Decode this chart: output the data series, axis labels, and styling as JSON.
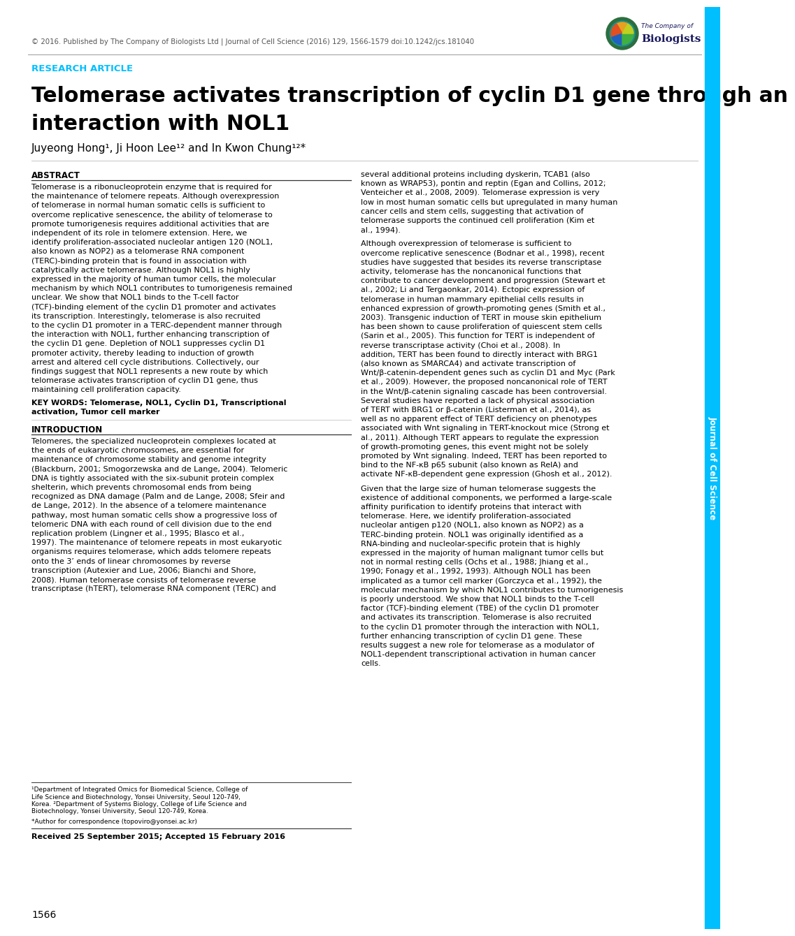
{
  "header_text": "© 2016. Published by The Company of Biologists Ltd | Journal of Cell Science (2016) 129, 1566-1579 doi:10.1242/jcs.181040",
  "research_article_label": "RESEARCH ARTICLE",
  "research_article_color": "#00BFFF",
  "title_line1": "Telomerase activates transcription of cyclin D1 gene through an",
  "title_line2": "interaction with NOL1",
  "authors": "Juyeong Hong¹, Ji Hoon Lee¹² and In Kwon Chung¹²*",
  "abstract_title": "ABSTRACT",
  "abstract_body": "Telomerase is a ribonucleoprotein enzyme that is required for the maintenance of telomere repeats. Although overexpression of telomerase in normal human somatic cells is sufficient to overcome replicative senescence, the ability of telomerase to promote tumorigenesis requires additional activities that are independent of its role in telomere extension. Here, we identify proliferation-associated nucleolar antigen 120 (NOL1, also known as NOP2) as a telomerase RNA component (TERC)-binding protein that is found in association with catalytically active telomerase. Although NOL1 is highly expressed in the majority of human tumor cells, the molecular mechanism by which NOL1 contributes to tumorigenesis remained unclear. We show that NOL1 binds to the T-cell factor (TCF)-binding element of the cyclin D1 promoter and activates its transcription. Interestingly, telomerase is also recruited to the cyclin D1 promoter in a TERC-dependent manner through the interaction with NOL1, further enhancing transcription of the cyclin D1 gene. Depletion of NOL1 suppresses cyclin D1 promoter activity, thereby leading to induction of growth arrest and altered cell cycle distributions. Collectively, our findings suggest that NOL1 represents a new route by which telomerase activates transcription of cyclin D1 gene, thus maintaining cell proliferation capacity.",
  "keywords_bold": "KEY WORDS: Telomerase, NOL1, Cyclin D1, Transcriptional",
  "keywords_bold2": "activation, Tumor cell marker",
  "intro_title": "INTRODUCTION",
  "intro_body": "Telomeres, the specialized nucleoprotein complexes located at the ends of eukaryotic chromosomes, are essential for maintenance of chromosome stability and genome integrity (Blackburn, 2001; Smogorzewska and de Lange, 2004). Telomeric DNA is tightly associated with the six-subunit protein complex shelterin, which prevents chromosomal ends from being recognized as DNA damage (Palm and de Lange, 2008; Sfeir and de Lange, 2012). In the absence of a telomere maintenance pathway, most human somatic cells show a progressive loss of telomeric DNA with each round of cell division due to the end replication problem (Lingner et al., 1995; Blasco et al., 1997). The maintenance of telomere repeats in most eukaryotic organisms requires telomerase, which adds telomere repeats onto the 3’ ends of linear chromosomes by reverse transcription (Autexier and Lue, 2006; Bianchi and Shore, 2008). Human telomerase consists of telomerase reverse transcriptase (hTERT), telomerase RNA component (TERC) and",
  "right_col_para1": "several additional proteins including dyskerin, TCAB1 (also known as WRAP53), pontin and reptin (Egan and Collins, 2012; Venteicher et al., 2008, 2009). Telomerase expression is very low in most human somatic cells but upregulated in many human cancer cells and stem cells, suggesting that activation of telomerase supports the continued cell proliferation (Kim et al., 1994).",
  "right_col_para2": "Although overexpression of telomerase is sufficient to overcome replicative senescence (Bodnar et al., 1998), recent studies have suggested that besides its reverse transcriptase activity, telomerase has the noncanonical functions that contribute to cancer development and progression (Stewart et al., 2002; Li and Tergaonkar, 2014). Ectopic expression of telomerase in human mammary epithelial cells results in enhanced expression of growth-promoting genes (Smith et al., 2003). Transgenic induction of TERT in mouse skin epithelium has been shown to cause proliferation of quiescent stem cells (Sarin et al., 2005). This function for TERT is independent of reverse transcriptase activity (Choi et al., 2008). In addition, TERT has been found to directly interact with BRG1 (also known as SMARCA4) and activate transcription of Wnt/β-catenin-dependent genes such as cyclin D1 and Myc (Park et al., 2009). However, the proposed noncanonical role of TERT in the Wnt/β-catenin signaling cascade has been controversial. Several studies have reported a lack of physical association of TERT with BRG1 or β-catenin (Listerman et al., 2014), as well as no apparent effect of TERT deficiency on phenotypes associated with Wnt signaling in TERT-knockout mice (Strong et al., 2011). Although TERT appears to regulate the expression of growth-promoting genes, this event might not be solely promoted by Wnt signaling. Indeed, TERT has been reported to bind to the NF-κB p65 subunit (also known as RelA) and activate NF-κB-dependent gene expression (Ghosh et al., 2012).",
  "right_col_para3": "Given that the large size of human telomerase suggests the existence of additional components, we performed a large-scale affinity purification to identify proteins that interact with telomerase. Here, we identify proliferation-associated nucleolar antigen p120 (NOL1, also known as NOP2) as a TERC-binding protein. NOL1 was originally identified as a RNA-binding and nucleolar-specific protein that is highly expressed in the majority of human malignant tumor cells but not in normal resting cells (Ochs et al., 1988; Jhiang et al., 1990; Fonagy et al., 1992, 1993). Although NOL1 has been implicated as a tumor cell marker (Gorczyca et al., 1992), the molecular mechanism by which NOL1 contributes to tumorigenesis is poorly understood. We show that NOL1 binds to the T-cell factor (TCF)-binding element (TBE) of the cyclin D1 promoter and activates its transcription. Telomerase is also recruited to the cyclin D1 promoter through the interaction with NOL1, further enhancing transcription of cyclin D1 gene. These results suggest a new role for telomerase as a modulator of NOL1-dependent transcriptional activation in human cancer cells.",
  "footnote1": "¹Department of Integrated Omics for Biomedical Science, College of Life Science and Biotechnology, Yonsei University, Seoul 120-749, Korea. ²Department of Systems Biology, College of Life Science and Biotechnology, Yonsei University, Seoul 120-749, Korea.",
  "footnote2": "*Author for correspondence (topoviro@yonsei.ac.kr)",
  "received_text": "Received 25 September 2015; Accepted 15 February 2016",
  "page_number": "1566",
  "sidebar_color": "#00BFFF",
  "sidebar_text": "Journal of Cell Science",
  "background_color": "#ffffff",
  "text_color": "#000000",
  "header_color": "#555555",
  "line_color": "#aaaaaa",
  "section_line_color": "#333333"
}
